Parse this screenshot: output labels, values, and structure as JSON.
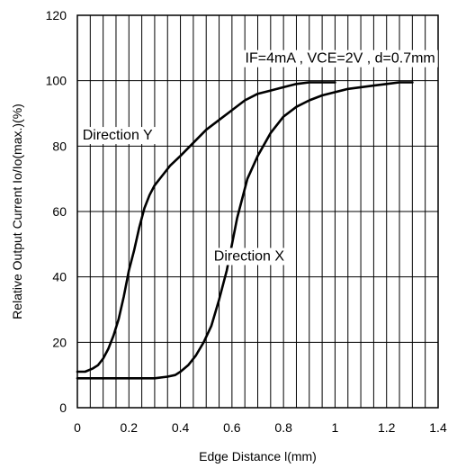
{
  "chart_data": {
    "type": "line",
    "title": "",
    "xlabel": "Edge Distance l(mm)",
    "ylabel": "Relative Output Current Io/Io(max.)(%)",
    "xlim": [
      0,
      1.4
    ],
    "ylim": [
      0,
      120
    ],
    "xticks": [
      0,
      0.2,
      0.4,
      0.6,
      0.8,
      1,
      1.2,
      1.4
    ],
    "xtick_labels": [
      "0",
      "0.2",
      "0.4",
      "0.6",
      "0.8",
      "1",
      "1.2",
      "1.4"
    ],
    "yticks": [
      0,
      20,
      40,
      60,
      80,
      100,
      120
    ],
    "ytick_labels": [
      "0",
      "20",
      "40",
      "60",
      "80",
      "100",
      "120"
    ],
    "x_minor_step": 0.05,
    "grid": true,
    "legend": "none",
    "series": [
      {
        "name": "Direction Y",
        "x": [
          0,
          0.03,
          0.06,
          0.08,
          0.1,
          0.12,
          0.14,
          0.16,
          0.18,
          0.2,
          0.22,
          0.24,
          0.26,
          0.28,
          0.3,
          0.33,
          0.36,
          0.4,
          0.45,
          0.5,
          0.55,
          0.6,
          0.65,
          0.7,
          0.75,
          0.8,
          0.85,
          0.9,
          0.95,
          1.0
        ],
        "y": [
          11,
          11,
          12,
          13,
          15,
          18,
          22,
          27,
          34,
          42,
          48,
          55,
          61,
          65,
          68,
          71,
          74,
          77,
          81,
          85,
          88,
          91,
          94,
          96,
          97,
          98,
          99,
          99.5,
          99.5,
          99.5
        ]
      },
      {
        "name": "Direction X",
        "x": [
          0,
          0.1,
          0.2,
          0.3,
          0.35,
          0.38,
          0.4,
          0.43,
          0.46,
          0.49,
          0.52,
          0.55,
          0.58,
          0.6,
          0.62,
          0.64,
          0.66,
          0.7,
          0.75,
          0.8,
          0.85,
          0.9,
          0.95,
          1.0,
          1.05,
          1.1,
          1.15,
          1.2,
          1.25,
          1.3
        ],
        "y": [
          9,
          9,
          9,
          9,
          9.5,
          10,
          11,
          13,
          16,
          20,
          25,
          33,
          42,
          50,
          58,
          64,
          70,
          77,
          84,
          89,
          92,
          94,
          95.5,
          96.5,
          97.5,
          98,
          98.5,
          99,
          99.5,
          99.5
        ]
      }
    ],
    "annotations": [
      {
        "text": "IF=4mA , VCE=2V , d=0.7mm",
        "x": 1.02,
        "y": 105.5,
        "anchor": "middle"
      },
      {
        "text": "Direction Y",
        "x": 0.02,
        "y": 82,
        "anchor": "start"
      },
      {
        "text": "Direction X",
        "x": 0.53,
        "y": 45,
        "anchor": "start"
      }
    ]
  }
}
